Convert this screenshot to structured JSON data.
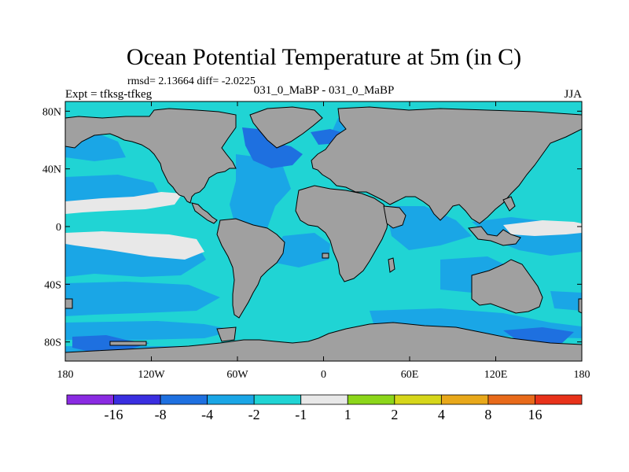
{
  "title": "Ocean Potential Temperature at 5m (in C)",
  "stats_line": "rmsd= 2.13664 diff= -2.0225",
  "expt_label": "Expt = tfksg-tfkeg",
  "center_label": "031_0_MaBP - 031_0_MaBP",
  "season_label": "JJA",
  "lat_ticks": [
    {
      "value": 80,
      "label": "80N"
    },
    {
      "value": 40,
      "label": "40N"
    },
    {
      "value": 0,
      "label": "0"
    },
    {
      "value": -40,
      "label": "40S"
    },
    {
      "value": -80,
      "label": "80S"
    }
  ],
  "lon_ticks": [
    {
      "value": -180,
      "label": "180"
    },
    {
      "value": -120,
      "label": "120W"
    },
    {
      "value": -60,
      "label": "60W"
    },
    {
      "value": 0,
      "label": "0"
    },
    {
      "value": 60,
      "label": "60E"
    },
    {
      "value": 120,
      "label": "120E"
    },
    {
      "value": 180,
      "label": "180"
    }
  ],
  "colorbar": {
    "colors": [
      "#8a2be2",
      "#3a2ee0",
      "#1e70e0",
      "#1aa6e6",
      "#20d4d4",
      "#e8e8e8",
      "#8cd61a",
      "#d6d61a",
      "#e8a81a",
      "#e86a1a",
      "#e8321a"
    ],
    "labels": [
      "-16",
      "-8",
      "-4",
      "-2",
      "-1",
      "1",
      "2",
      "4",
      "8",
      "16"
    ]
  },
  "colors": {
    "land": "#a0a0a0",
    "sea_bg": "#20d4d4",
    "band_minus2_minus4": "#1aa6e6",
    "band_minus4_minus8": "#1e70e0",
    "band_near_zero": "#e8e8e8"
  }
}
